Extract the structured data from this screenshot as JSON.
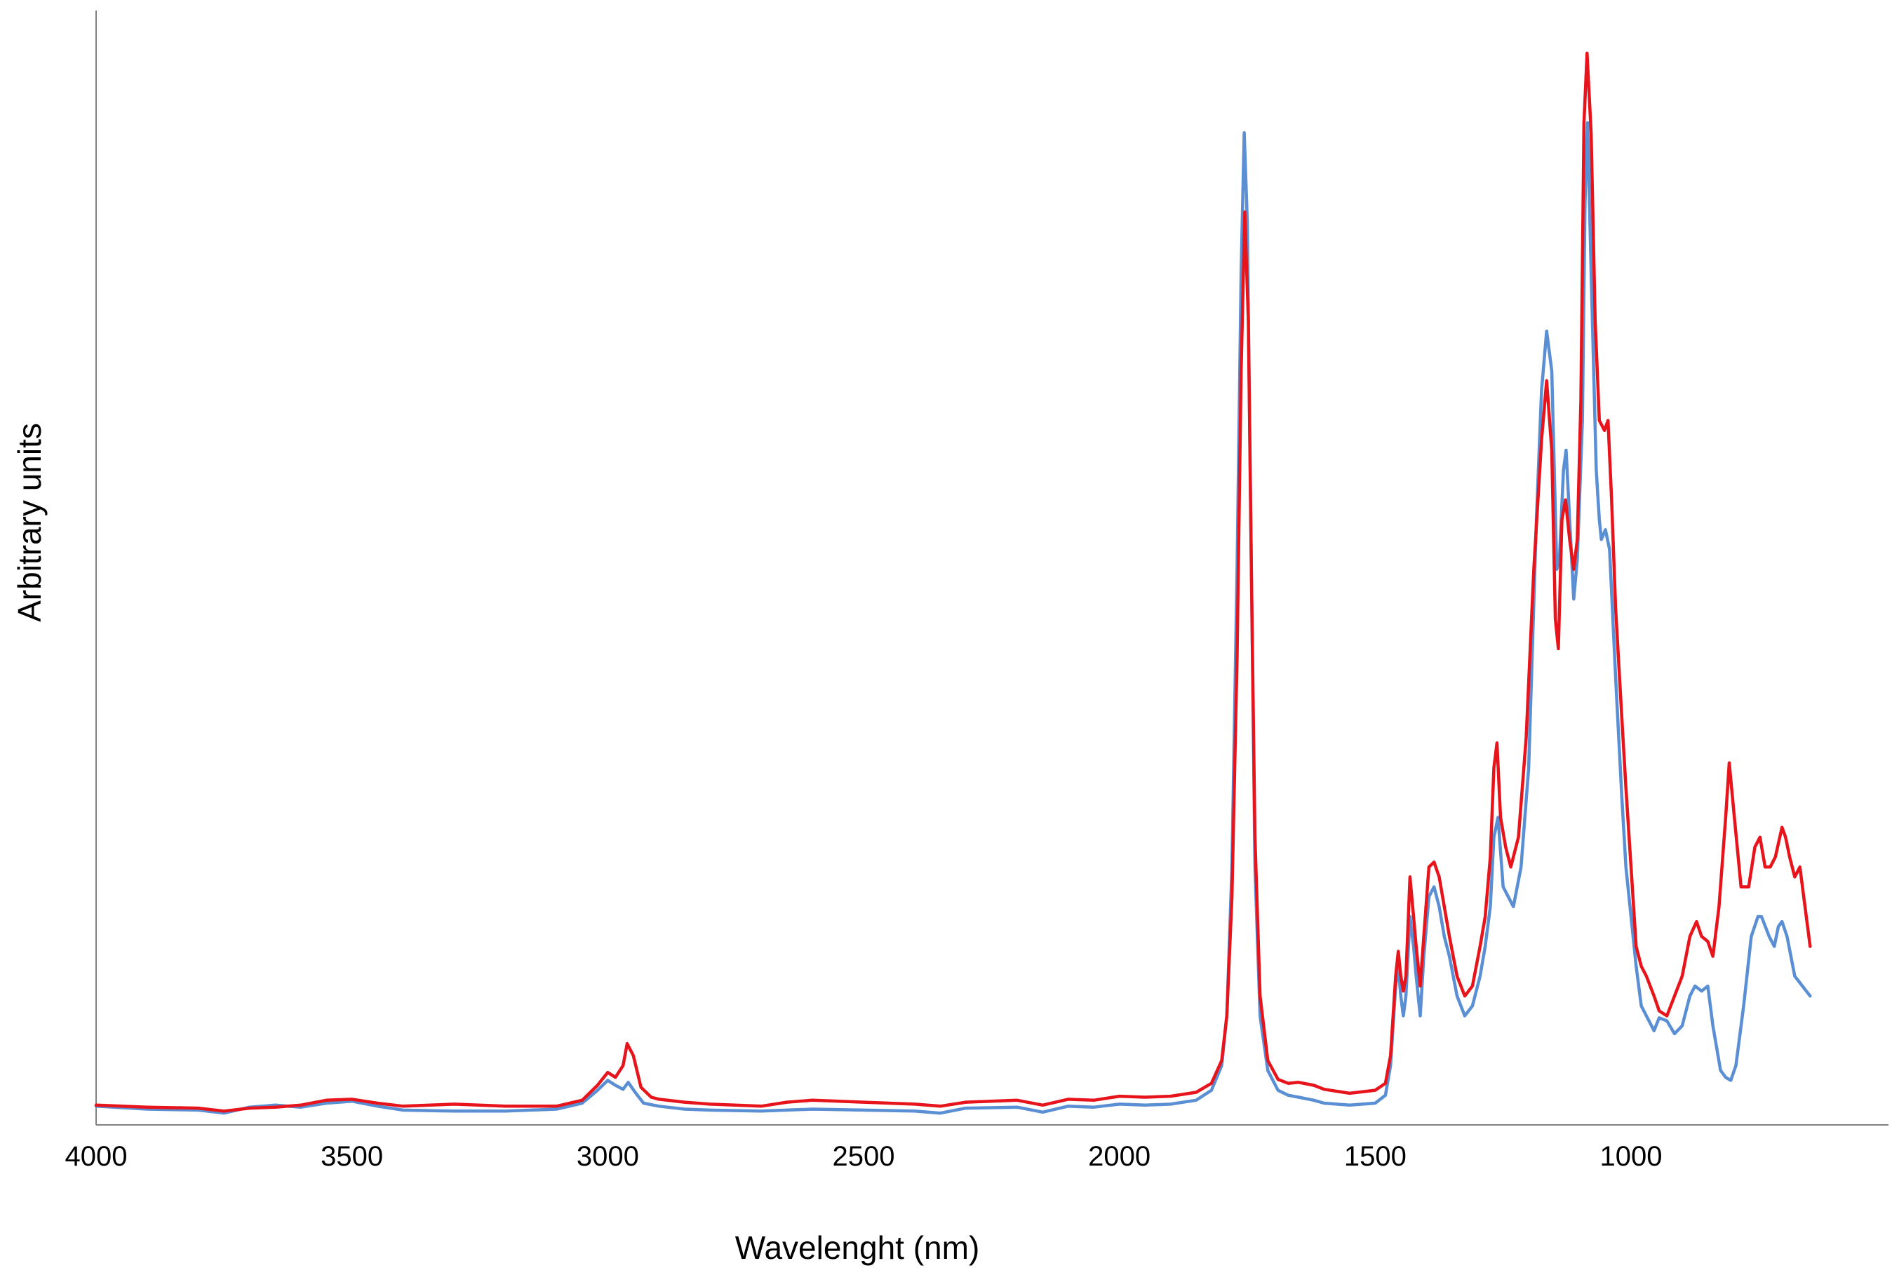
{
  "chart_data": {
    "type": "line",
    "title": "",
    "xlabel": "Wavelenght (nm)",
    "ylabel": "Arbitrary units",
    "x_reversed": true,
    "xlim": [
      4000,
      600
    ],
    "ylim": [
      0,
      100
    ],
    "x_ticks": [
      "4000",
      "3500",
      "3000",
      "2500",
      "2000",
      "1500",
      "1000"
    ],
    "grid": false,
    "legend": "none",
    "series": [
      {
        "color": "#5b8fd4",
        "points": [
          [
            4000,
            0.9
          ],
          [
            3900,
            0.6
          ],
          [
            3800,
            0.5
          ],
          [
            3750,
            0.2
          ],
          [
            3700,
            0.8
          ],
          [
            3650,
            1.0
          ],
          [
            3600,
            0.8
          ],
          [
            3550,
            1.2
          ],
          [
            3500,
            1.4
          ],
          [
            3450,
            0.9
          ],
          [
            3400,
            0.5
          ],
          [
            3300,
            0.4
          ],
          [
            3200,
            0.4
          ],
          [
            3100,
            0.6
          ],
          [
            3050,
            1.2
          ],
          [
            3020,
            2.5
          ],
          [
            3000,
            3.5
          ],
          [
            2985,
            3.0
          ],
          [
            2970,
            2.6
          ],
          [
            2960,
            3.3
          ],
          [
            2945,
            2.2
          ],
          [
            2930,
            1.2
          ],
          [
            2900,
            0.9
          ],
          [
            2850,
            0.6
          ],
          [
            2800,
            0.5
          ],
          [
            2700,
            0.4
          ],
          [
            2600,
            0.6
          ],
          [
            2500,
            0.5
          ],
          [
            2400,
            0.4
          ],
          [
            2350,
            0.2
          ],
          [
            2300,
            0.7
          ],
          [
            2200,
            0.8
          ],
          [
            2150,
            0.3
          ],
          [
            2100,
            0.9
          ],
          [
            2050,
            0.8
          ],
          [
            2000,
            1.1
          ],
          [
            1950,
            1.0
          ],
          [
            1900,
            1.1
          ],
          [
            1850,
            1.5
          ],
          [
            1820,
            2.5
          ],
          [
            1800,
            5
          ],
          [
            1790,
            10
          ],
          [
            1780,
            25
          ],
          [
            1770,
            55
          ],
          [
            1762,
            85
          ],
          [
            1756,
            99
          ],
          [
            1750,
            90
          ],
          [
            1742,
            55
          ],
          [
            1735,
            25
          ],
          [
            1725,
            10
          ],
          [
            1710,
            4.5
          ],
          [
            1690,
            2.5
          ],
          [
            1670,
            2.0
          ],
          [
            1650,
            1.8
          ],
          [
            1620,
            1.5
          ],
          [
            1600,
            1.2
          ],
          [
            1550,
            1.0
          ],
          [
            1500,
            1.2
          ],
          [
            1480,
            2.0
          ],
          [
            1470,
            5
          ],
          [
            1460,
            13
          ],
          [
            1455,
            15
          ],
          [
            1450,
            12
          ],
          [
            1445,
            10
          ],
          [
            1440,
            12
          ],
          [
            1432,
            20
          ],
          [
            1425,
            17
          ],
          [
            1420,
            14
          ],
          [
            1412,
            10
          ],
          [
            1405,
            16
          ],
          [
            1395,
            22
          ],
          [
            1385,
            23
          ],
          [
            1375,
            21
          ],
          [
            1365,
            18
          ],
          [
            1355,
            16
          ],
          [
            1340,
            12
          ],
          [
            1325,
            10
          ],
          [
            1310,
            11
          ],
          [
            1295,
            14
          ],
          [
            1285,
            17
          ],
          [
            1275,
            21
          ],
          [
            1268,
            28
          ],
          [
            1260,
            30
          ],
          [
            1250,
            23
          ],
          [
            1240,
            22
          ],
          [
            1230,
            21
          ],
          [
            1215,
            25
          ],
          [
            1200,
            35
          ],
          [
            1185,
            60
          ],
          [
            1175,
            73
          ],
          [
            1165,
            79
          ],
          [
            1155,
            75
          ],
          [
            1145,
            55
          ],
          [
            1140,
            56
          ],
          [
            1132,
            65
          ],
          [
            1127,
            67
          ],
          [
            1120,
            60
          ],
          [
            1112,
            52
          ],
          [
            1105,
            56
          ],
          [
            1095,
            70
          ],
          [
            1090,
            92
          ],
          [
            1085,
            100
          ],
          [
            1078,
            85
          ],
          [
            1068,
            65
          ],
          [
            1062,
            60
          ],
          [
            1058,
            58
          ],
          [
            1050,
            59
          ],
          [
            1042,
            57
          ],
          [
            1030,
            44
          ],
          [
            1018,
            32
          ],
          [
            1010,
            25
          ],
          [
            1000,
            20
          ],
          [
            990,
            15
          ],
          [
            980,
            11
          ],
          [
            970,
            10
          ],
          [
            955,
            8.5
          ],
          [
            945,
            9.8
          ],
          [
            930,
            9.5
          ],
          [
            915,
            8.2
          ],
          [
            900,
            9
          ],
          [
            885,
            12
          ],
          [
            875,
            13
          ],
          [
            862,
            12.5
          ],
          [
            850,
            13
          ],
          [
            840,
            9
          ],
          [
            825,
            4.5
          ],
          [
            815,
            3.8
          ],
          [
            805,
            3.5
          ],
          [
            795,
            5
          ],
          [
            780,
            11
          ],
          [
            765,
            18
          ],
          [
            752,
            20
          ],
          [
            745,
            20
          ],
          [
            730,
            18
          ],
          [
            720,
            17
          ],
          [
            712,
            19
          ],
          [
            705,
            19.5
          ],
          [
            695,
            18
          ],
          [
            680,
            14
          ],
          [
            665,
            13
          ],
          [
            650,
            12
          ]
        ]
      },
      {
        "color": "#e8141c",
        "points": [
          [
            4000,
            1.0
          ],
          [
            3900,
            0.8
          ],
          [
            3800,
            0.7
          ],
          [
            3750,
            0.4
          ],
          [
            3700,
            0.7
          ],
          [
            3650,
            0.8
          ],
          [
            3600,
            1.0
          ],
          [
            3550,
            1.5
          ],
          [
            3500,
            1.6
          ],
          [
            3450,
            1.2
          ],
          [
            3400,
            0.9
          ],
          [
            3300,
            1.1
          ],
          [
            3200,
            0.9
          ],
          [
            3100,
            0.9
          ],
          [
            3050,
            1.5
          ],
          [
            3020,
            3.0
          ],
          [
            3000,
            4.3
          ],
          [
            2985,
            3.8
          ],
          [
            2970,
            5.0
          ],
          [
            2962,
            7.2
          ],
          [
            2950,
            6.0
          ],
          [
            2935,
            2.8
          ],
          [
            2915,
            1.8
          ],
          [
            2900,
            1.6
          ],
          [
            2850,
            1.3
          ],
          [
            2800,
            1.1
          ],
          [
            2700,
            0.9
          ],
          [
            2650,
            1.3
          ],
          [
            2600,
            1.5
          ],
          [
            2500,
            1.3
          ],
          [
            2400,
            1.1
          ],
          [
            2350,
            0.9
          ],
          [
            2300,
            1.3
          ],
          [
            2200,
            1.5
          ],
          [
            2150,
            1.0
          ],
          [
            2100,
            1.6
          ],
          [
            2050,
            1.5
          ],
          [
            2000,
            1.9
          ],
          [
            1950,
            1.8
          ],
          [
            1900,
            1.9
          ],
          [
            1850,
            2.3
          ],
          [
            1820,
            3.2
          ],
          [
            1800,
            5.5
          ],
          [
            1790,
            10
          ],
          [
            1780,
            22
          ],
          [
            1770,
            46
          ],
          [
            1762,
            75
          ],
          [
            1755,
            91
          ],
          [
            1748,
            80
          ],
          [
            1742,
            55
          ],
          [
            1735,
            28
          ],
          [
            1725,
            12
          ],
          [
            1710,
            5.5
          ],
          [
            1690,
            3.6
          ],
          [
            1670,
            3.2
          ],
          [
            1650,
            3.3
          ],
          [
            1620,
            3.0
          ],
          [
            1600,
            2.6
          ],
          [
            1550,
            2.2
          ],
          [
            1500,
            2.5
          ],
          [
            1480,
            3.2
          ],
          [
            1470,
            6
          ],
          [
            1460,
            14
          ],
          [
            1455,
            16.5
          ],
          [
            1450,
            14
          ],
          [
            1445,
            12.5
          ],
          [
            1440,
            14
          ],
          [
            1432,
            24
          ],
          [
            1425,
            20
          ],
          [
            1420,
            17
          ],
          [
            1412,
            13
          ],
          [
            1405,
            18
          ],
          [
            1395,
            25
          ],
          [
            1385,
            25.5
          ],
          [
            1375,
            24
          ],
          [
            1365,
            21
          ],
          [
            1355,
            18
          ],
          [
            1340,
            14
          ],
          [
            1325,
            12
          ],
          [
            1310,
            13
          ],
          [
            1295,
            17
          ],
          [
            1285,
            20
          ],
          [
            1275,
            26
          ],
          [
            1268,
            35
          ],
          [
            1262,
            37.5
          ],
          [
            1255,
            30
          ],
          [
            1245,
            27
          ],
          [
            1235,
            25
          ],
          [
            1220,
            28
          ],
          [
            1205,
            38
          ],
          [
            1190,
            55
          ],
          [
            1175,
            68
          ],
          [
            1165,
            74
          ],
          [
            1155,
            67
          ],
          [
            1148,
            50
          ],
          [
            1142,
            47
          ],
          [
            1135,
            60
          ],
          [
            1128,
            62
          ],
          [
            1120,
            58
          ],
          [
            1112,
            55
          ],
          [
            1105,
            58
          ],
          [
            1098,
            72
          ],
          [
            1092,
            100
          ],
          [
            1086,
            107
          ],
          [
            1078,
            99
          ],
          [
            1070,
            80
          ],
          [
            1062,
            70
          ],
          [
            1052,
            69
          ],
          [
            1045,
            70
          ],
          [
            1038,
            62
          ],
          [
            1030,
            51
          ],
          [
            1018,
            40
          ],
          [
            1010,
            33
          ],
          [
            1000,
            25
          ],
          [
            990,
            17
          ],
          [
            980,
            15
          ],
          [
            970,
            14
          ],
          [
            955,
            12
          ],
          [
            945,
            10.5
          ],
          [
            930,
            10
          ],
          [
            915,
            12
          ],
          [
            900,
            14
          ],
          [
            885,
            18
          ],
          [
            872,
            19.5
          ],
          [
            862,
            18
          ],
          [
            850,
            17.5
          ],
          [
            840,
            16
          ],
          [
            828,
            21
          ],
          [
            815,
            30
          ],
          [
            808,
            35.5
          ],
          [
            798,
            30
          ],
          [
            785,
            23
          ],
          [
            770,
            23
          ],
          [
            758,
            27
          ],
          [
            748,
            28
          ],
          [
            738,
            25
          ],
          [
            728,
            25
          ],
          [
            718,
            26
          ],
          [
            705,
            29
          ],
          [
            698,
            28
          ],
          [
            690,
            26
          ],
          [
            680,
            24
          ],
          [
            670,
            25
          ],
          [
            660,
            21
          ],
          [
            650,
            17
          ]
        ]
      }
    ]
  }
}
